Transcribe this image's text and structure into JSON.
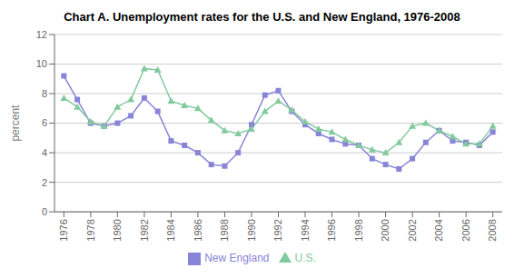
{
  "chart_data": {
    "type": "line",
    "title": "Chart A. Unemployment rates for the U.S. and New England, 1976-2008",
    "ylabel": "percent",
    "x": [
      1976,
      1977,
      1978,
      1979,
      1980,
      1981,
      1982,
      1983,
      1984,
      1985,
      1986,
      1987,
      1988,
      1989,
      1990,
      1991,
      1992,
      1993,
      1994,
      1995,
      1996,
      1997,
      1998,
      1999,
      2000,
      2001,
      2002,
      2003,
      2004,
      2005,
      2006,
      2007,
      2008
    ],
    "series": [
      {
        "name": "New England",
        "color": "#8884d8",
        "marker": "square",
        "values": [
          9.2,
          7.6,
          6.0,
          5.8,
          6.0,
          6.5,
          7.7,
          6.8,
          4.8,
          4.5,
          4.0,
          3.2,
          3.1,
          4.0,
          5.9,
          7.9,
          8.2,
          6.8,
          5.9,
          5.3,
          4.9,
          4.6,
          4.5,
          3.6,
          3.2,
          2.9,
          3.6,
          4.7,
          5.5,
          4.8,
          4.7,
          4.5,
          5.4
        ]
      },
      {
        "name": "U.S.",
        "color": "#82ca9d",
        "marker": "triangle",
        "values": [
          7.7,
          7.1,
          6.1,
          5.8,
          7.1,
          7.6,
          9.7,
          9.6,
          7.5,
          7.2,
          7.0,
          6.2,
          5.5,
          5.3,
          5.6,
          6.8,
          7.5,
          6.9,
          6.1,
          5.6,
          5.4,
          4.9,
          4.5,
          4.2,
          4.0,
          4.7,
          5.8,
          6.0,
          5.5,
          5.1,
          4.6,
          4.6,
          5.8
        ]
      }
    ],
    "xlim": [
      1975.3,
      2008.7
    ],
    "xticks": [
      1976,
      1978,
      1980,
      1982,
      1984,
      1986,
      1988,
      1990,
      1992,
      1994,
      1996,
      1998,
      2000,
      2002,
      2004,
      2006,
      2008
    ],
    "ylim": [
      0,
      12
    ],
    "yticks": [
      0,
      2,
      4,
      6,
      8,
      10,
      12
    ],
    "grid": true,
    "legend": "bottom"
  }
}
